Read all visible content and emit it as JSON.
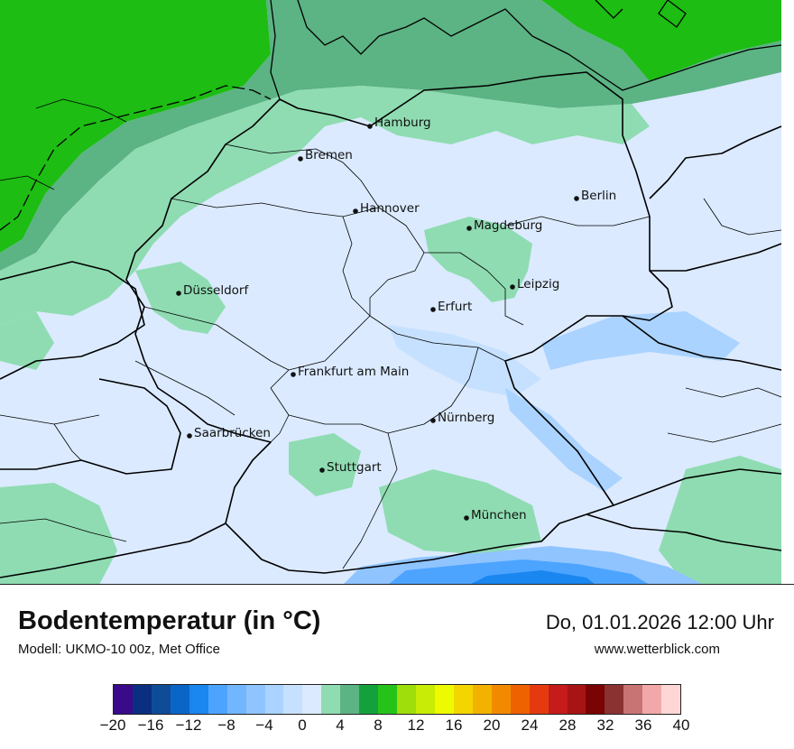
{
  "title": "Bodentemperatur (in °C)",
  "model": "Modell: UKMO-10 00z, Met Office",
  "datetime": "Do, 01.01.2026 12:00 Uhr",
  "site": "www.wetterblick.com",
  "cities": [
    {
      "name": "Hamburg"
    },
    {
      "name": "Bremen"
    },
    {
      "name": "Hannover"
    },
    {
      "name": "Berlin"
    },
    {
      "name": "Magdeburg"
    },
    {
      "name": "Leipzig"
    },
    {
      "name": "Düsseldorf"
    },
    {
      "name": "Erfurt"
    },
    {
      "name": "Frankfurt am Main"
    },
    {
      "name": "Nürnberg"
    },
    {
      "name": "Saarbrücken"
    },
    {
      "name": "Stuttgart"
    },
    {
      "name": "München"
    }
  ],
  "legend": {
    "colors": [
      "#3a0a8a",
      "#0b2f80",
      "#0f4c98",
      "#0a66c6",
      "#1a86f0",
      "#4da4ff",
      "#72b6ff",
      "#8fc4ff",
      "#aad3ff",
      "#c6e1ff",
      "#dbeaff",
      "#8fdcb2",
      "#5cb383",
      "#14a13b",
      "#25c21a",
      "#9fde0a",
      "#c8ec05",
      "#eefa00",
      "#f3d500",
      "#f3b200",
      "#f28a00",
      "#ee6200",
      "#e53a0f",
      "#c51b1b",
      "#a81414",
      "#7a0303",
      "#8a3232",
      "#c97474",
      "#f2a8a8",
      "#ffd6d6"
    ],
    "ticks": [
      "−20",
      "−16",
      "−12",
      "−8",
      "−4",
      "0",
      "4",
      "8",
      "12",
      "16",
      "20",
      "24",
      "28",
      "32",
      "36",
      "40"
    ]
  }
}
